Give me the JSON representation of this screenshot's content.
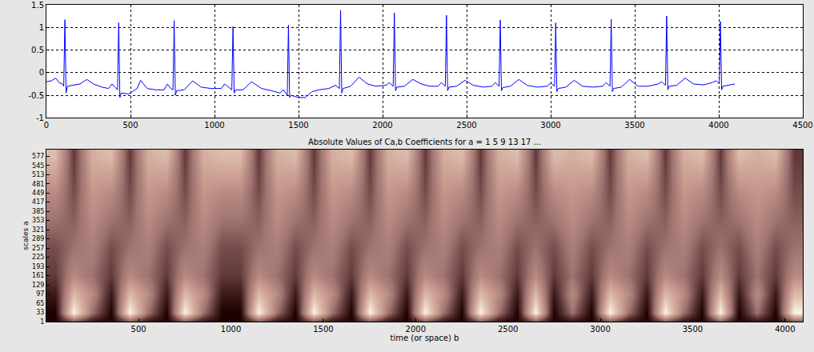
{
  "chart_data": [
    {
      "type": "line",
      "color": "#0000ff",
      "grid": true,
      "x": [
        0,
        30,
        55,
        75,
        95,
        103,
        110,
        117,
        125,
        160,
        200,
        240,
        280,
        330,
        370,
        390,
        410,
        423,
        430,
        437,
        445,
        490,
        540,
        560,
        600,
        650,
        700,
        720,
        740,
        753,
        760,
        767,
        775,
        820,
        870,
        920,
        980,
        1040,
        1060,
        1090,
        1103,
        1110,
        1117,
        1125,
        1170,
        1220,
        1280,
        1340,
        1390,
        1410,
        1433,
        1440,
        1447,
        1455,
        1500,
        1540,
        1580,
        1620,
        1680,
        1720,
        1743,
        1750,
        1757,
        1765,
        1810,
        1860,
        1910,
        1960,
        2020,
        2040,
        2063,
        2070,
        2077,
        2085,
        2130,
        2180,
        2230,
        2280,
        2330,
        2350,
        2373,
        2380,
        2387,
        2395,
        2440,
        2490,
        2540,
        2600,
        2650,
        2670,
        2693,
        2700,
        2707,
        2715,
        2760,
        2810,
        2860,
        2920,
        2980,
        3000,
        3023,
        3030,
        3037,
        3045,
        3090,
        3140,
        3190,
        3250,
        3310,
        3330,
        3353,
        3360,
        3367,
        3375,
        3420,
        3470,
        3520,
        3580,
        3640,
        3660,
        3683,
        3690,
        3697,
        3705,
        3750,
        3800,
        3850,
        3910,
        3960,
        3985,
        4003,
        4010,
        4017,
        4025,
        4060,
        4096
      ],
      "values": [
        -0.2,
        -0.18,
        -0.12,
        -0.22,
        -0.25,
        -0.3,
        1.17,
        -0.45,
        -0.3,
        -0.28,
        -0.25,
        -0.15,
        -0.25,
        -0.32,
        -0.35,
        -0.25,
        -0.33,
        -0.38,
        1.1,
        -0.55,
        -0.45,
        -0.47,
        -0.35,
        -0.17,
        -0.35,
        -0.38,
        -0.38,
        -0.25,
        -0.35,
        -0.38,
        1.15,
        -0.5,
        -0.4,
        -0.38,
        -0.18,
        -0.32,
        -0.35,
        -0.35,
        -0.25,
        -0.33,
        -0.38,
        1.02,
        -0.45,
        -0.38,
        -0.38,
        -0.2,
        -0.35,
        -0.4,
        -0.45,
        -0.38,
        -0.5,
        1.05,
        -0.55,
        -0.5,
        -0.55,
        -0.55,
        -0.42,
        -0.38,
        -0.35,
        -0.28,
        -0.35,
        1.38,
        -0.45,
        -0.35,
        -0.3,
        -0.1,
        -0.25,
        -0.3,
        -0.28,
        -0.22,
        -0.3,
        1.32,
        -0.4,
        -0.32,
        -0.3,
        -0.15,
        -0.25,
        -0.3,
        -0.3,
        -0.22,
        -0.3,
        1.27,
        -0.4,
        -0.32,
        -0.3,
        -0.17,
        -0.28,
        -0.32,
        -0.3,
        -0.22,
        -0.3,
        1.16,
        -0.4,
        -0.33,
        -0.3,
        -0.15,
        -0.28,
        -0.32,
        -0.3,
        -0.23,
        -0.3,
        1.1,
        -0.42,
        -0.35,
        -0.32,
        -0.17,
        -0.3,
        -0.32,
        -0.3,
        -0.22,
        -0.3,
        1.18,
        -0.42,
        -0.35,
        -0.32,
        -0.15,
        -0.3,
        -0.3,
        -0.25,
        -0.2,
        -0.28,
        1.25,
        -0.38,
        -0.3,
        -0.28,
        -0.12,
        -0.25,
        -0.27,
        -0.22,
        -0.18,
        -0.25,
        1.13,
        -0.38,
        -0.3,
        -0.28,
        -0.25
      ],
      "xlim": [
        0,
        4500
      ],
      "xticks": [
        0,
        500,
        1000,
        1500,
        2000,
        2500,
        3000,
        3500,
        4000,
        4500
      ],
      "ylim": [
        -1,
        1.5
      ],
      "yticks": [
        -1,
        -0.5,
        0,
        0.5,
        1,
        1.5
      ]
    },
    {
      "type": "heatmap",
      "grid": false,
      "title": "Absolute Values of Ca,b Coefficients for a = 1 5 9 13 17 ...",
      "x_label": "time (or space) b",
      "y_label": "scales a",
      "x": [
        50,
        150,
        250,
        350,
        450,
        550,
        650,
        750,
        850,
        950,
        1050,
        1150,
        1250,
        1350,
        1450,
        1550,
        1650,
        1750,
        1850,
        1950,
        2050,
        2150,
        2250,
        2350,
        2450,
        2550,
        2650,
        2750,
        2850,
        2950,
        3050,
        3150,
        3250,
        3350,
        3450,
        3550,
        3650,
        3750,
        3850,
        3950,
        4050
      ],
      "y": [
        1,
        33,
        97,
        161,
        257,
        353,
        449,
        577
      ],
      "cells": [
        [
          12,
          35,
          18,
          12,
          35,
          18,
          12,
          35,
          18,
          12,
          12,
          35,
          18,
          12,
          35,
          18,
          12,
          35,
          18,
          12,
          35,
          18,
          12,
          35,
          18,
          12,
          35,
          12,
          18,
          12,
          35,
          18,
          12,
          35,
          18,
          12,
          35,
          12,
          18,
          12,
          35
        ],
        [
          12,
          95,
          45,
          12,
          95,
          45,
          12,
          95,
          45,
          12,
          12,
          95,
          45,
          12,
          95,
          45,
          12,
          95,
          45,
          12,
          95,
          45,
          12,
          95,
          45,
          12,
          95,
          12,
          45,
          12,
          95,
          45,
          12,
          95,
          45,
          12,
          95,
          12,
          45,
          12,
          95
        ],
        [
          20,
          75,
          55,
          20,
          75,
          55,
          20,
          75,
          55,
          20,
          20,
          75,
          55,
          20,
          75,
          55,
          20,
          75,
          55,
          20,
          75,
          55,
          20,
          75,
          55,
          20,
          75,
          20,
          55,
          20,
          75,
          55,
          20,
          75,
          55,
          20,
          75,
          20,
          55,
          20,
          75
        ],
        [
          30,
          55,
          45,
          30,
          55,
          45,
          30,
          55,
          45,
          30,
          30,
          55,
          45,
          30,
          55,
          45,
          30,
          55,
          45,
          30,
          55,
          45,
          30,
          55,
          45,
          30,
          55,
          30,
          45,
          30,
          55,
          45,
          30,
          55,
          45,
          30,
          55,
          30,
          45,
          30,
          55
        ],
        [
          35,
          45,
          50,
          35,
          45,
          50,
          35,
          45,
          50,
          35,
          35,
          45,
          50,
          35,
          45,
          50,
          35,
          45,
          50,
          35,
          45,
          50,
          35,
          45,
          50,
          35,
          45,
          35,
          50,
          35,
          45,
          50,
          35,
          45,
          50,
          35,
          45,
          35,
          50,
          35,
          45
        ],
        [
          45,
          40,
          55,
          45,
          40,
          55,
          45,
          40,
          55,
          45,
          45,
          40,
          55,
          45,
          40,
          55,
          45,
          40,
          55,
          45,
          40,
          55,
          45,
          40,
          55,
          45,
          40,
          45,
          55,
          45,
          40,
          55,
          45,
          40,
          55,
          45,
          40,
          45,
          55,
          45,
          40
        ],
        [
          55,
          35,
          60,
          55,
          35,
          60,
          55,
          35,
          60,
          55,
          55,
          35,
          60,
          55,
          35,
          60,
          55,
          35,
          60,
          55,
          35,
          60,
          55,
          35,
          60,
          55,
          35,
          55,
          60,
          55,
          35,
          60,
          55,
          35,
          60,
          55,
          35,
          55,
          60,
          55,
          35
        ],
        [
          75,
          30,
          70,
          75,
          30,
          70,
          75,
          30,
          70,
          75,
          75,
          30,
          70,
          75,
          30,
          70,
          75,
          30,
          70,
          75,
          30,
          70,
          75,
          30,
          70,
          75,
          30,
          75,
          70,
          75,
          30,
          70,
          75,
          30,
          70,
          75,
          30,
          75,
          70,
          75,
          30
        ]
      ],
      "xlim": [
        1,
        4096
      ],
      "xticks": [
        500,
        1000,
        1500,
        2000,
        2500,
        3000,
        3500,
        4000
      ],
      "ylim": [
        1,
        600
      ],
      "yticks": [
        1,
        33,
        65,
        97,
        129,
        161,
        193,
        225,
        257,
        289,
        321,
        353,
        385,
        417,
        449,
        481,
        513,
        545,
        577
      ]
    }
  ]
}
